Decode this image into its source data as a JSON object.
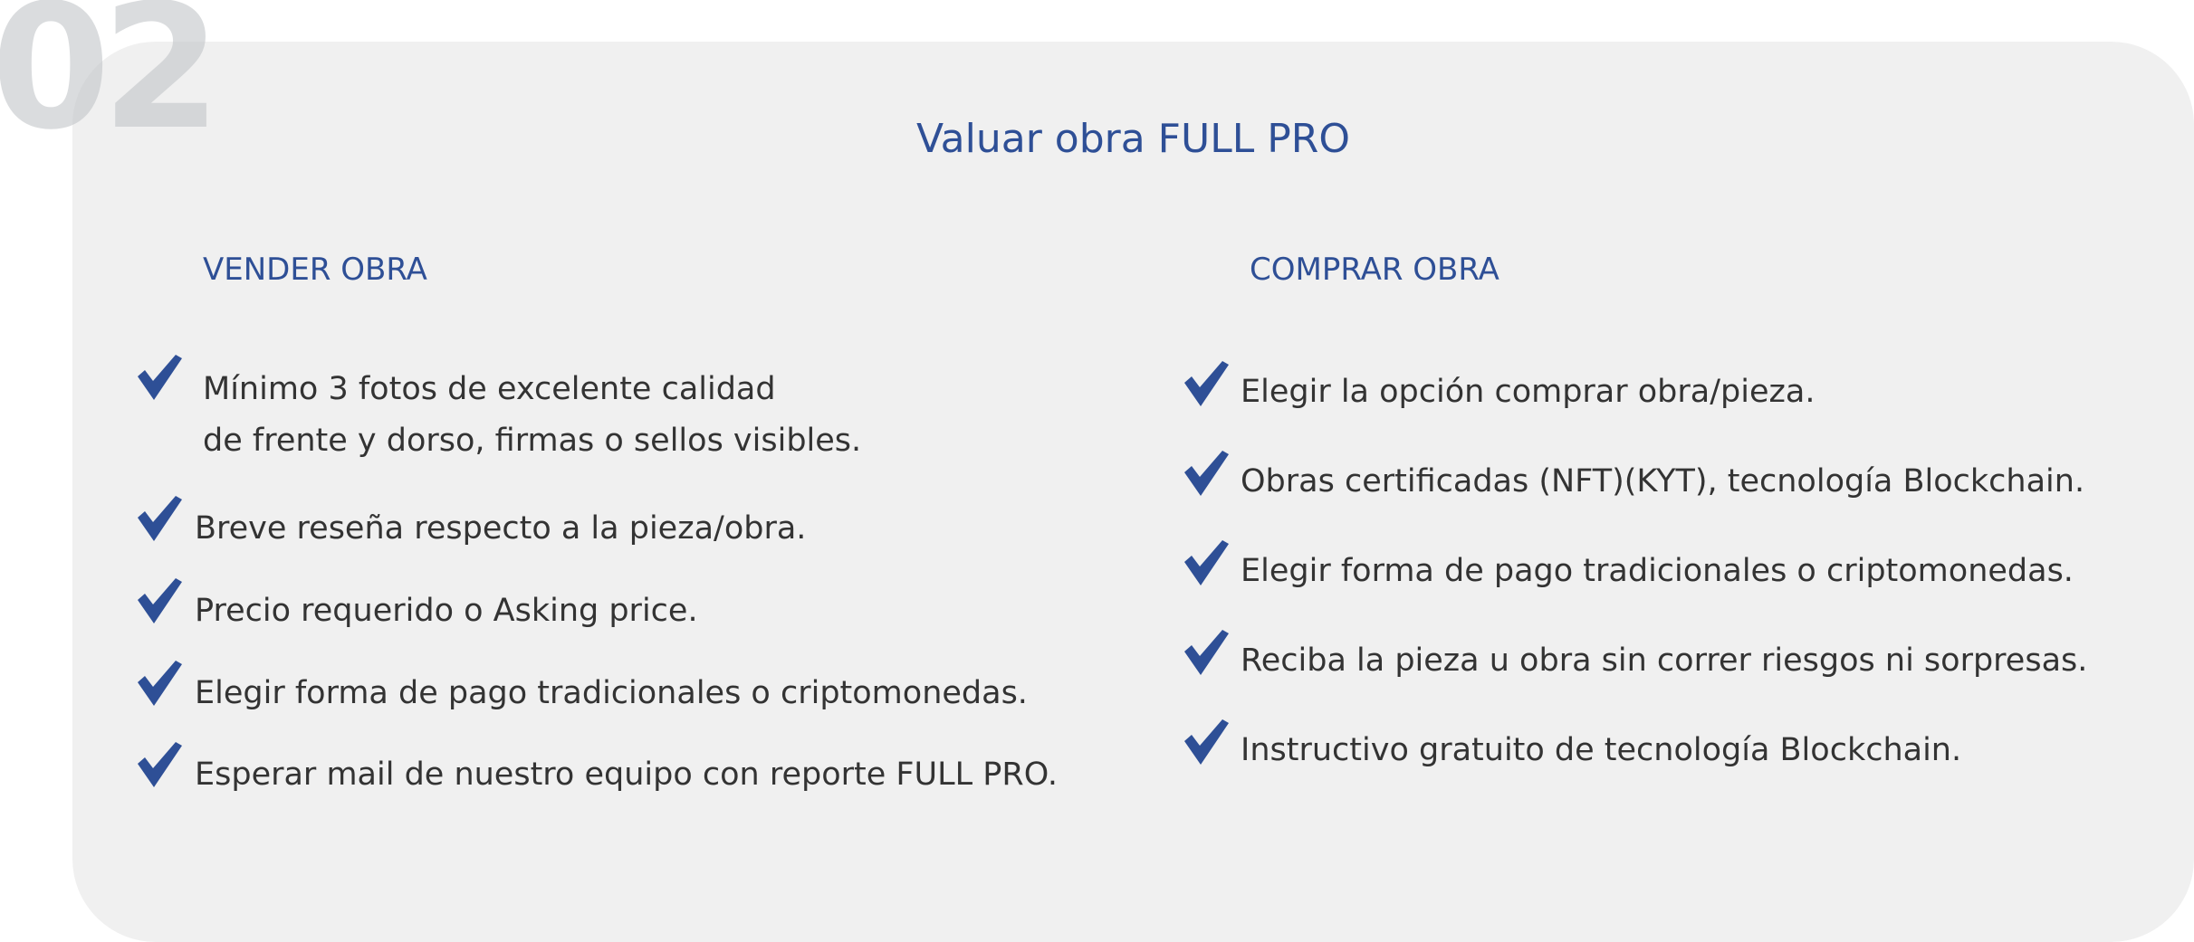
{
  "badge_number": "02",
  "title": "Valuar obra FULL PRO",
  "colors": {
    "accent": "#2e4f96",
    "card": "#f0f0f0",
    "text": "#333333",
    "number": "#c4c6ca"
  },
  "icon": "checkmark-icon",
  "sell": {
    "heading": "VENDER OBRA",
    "items": [
      {
        "line1": "Mínimo 3 fotos de excelente calidad",
        "line2": "de frente y dorso, firmas o sellos visibles."
      },
      {
        "line1": "Breve reseña respecto a la pieza/obra."
      },
      {
        "line1": "Precio requerido o Asking price."
      },
      {
        "line1": "Elegir forma de pago tradicionales o criptomonedas."
      },
      {
        "line1": "Esperar mail de nuestro equipo con reporte FULL PRO."
      }
    ]
  },
  "buy": {
    "heading": "COMPRAR OBRA",
    "items": [
      {
        "line1": "Elegir la opción comprar obra/pieza."
      },
      {
        "line1": "Obras certificadas (NFT)(KYT), tecnología Blockchain."
      },
      {
        "line1": "Elegir forma de pago tradicionales o criptomonedas."
      },
      {
        "line1": "Reciba la pieza u obra sin correr riesgos ni sorpresas."
      },
      {
        "line1": "Instructivo gratuito de tecnología Blockchain."
      }
    ]
  }
}
